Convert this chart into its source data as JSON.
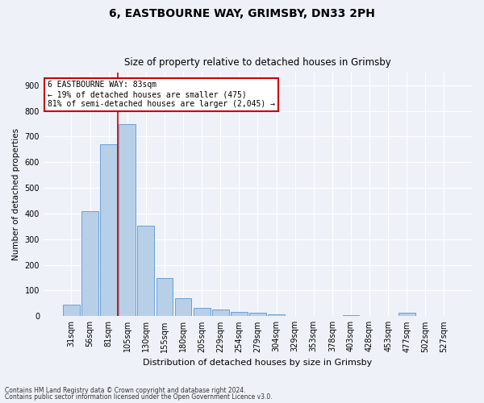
{
  "title1": "6, EASTBOURNE WAY, GRIMSBY, DN33 2PH",
  "title2": "Size of property relative to detached houses in Grimsby",
  "xlabel": "Distribution of detached houses by size in Grimsby",
  "ylabel": "Number of detached properties",
  "categories": [
    "31sqm",
    "56sqm",
    "81sqm",
    "105sqm",
    "130sqm",
    "155sqm",
    "180sqm",
    "205sqm",
    "229sqm",
    "254sqm",
    "279sqm",
    "304sqm",
    "329sqm",
    "353sqm",
    "378sqm",
    "403sqm",
    "428sqm",
    "453sqm",
    "477sqm",
    "502sqm",
    "527sqm"
  ],
  "values": [
    45,
    410,
    670,
    748,
    353,
    148,
    70,
    33,
    25,
    18,
    15,
    8,
    2,
    0,
    0,
    5,
    0,
    0,
    12,
    0,
    0
  ],
  "bar_color": "#b8cfe8",
  "bar_edge_color": "#6a9fd8",
  "vline_x": 2.5,
  "vline_color": "#cc0000",
  "annotation_text": "6 EASTBOURNE WAY: 83sqm\n← 19% of detached houses are smaller (475)\n81% of semi-detached houses are larger (2,045) →",
  "annotation_box_color": "#ffffff",
  "annotation_box_edge": "#cc0000",
  "ylim": [
    0,
    950
  ],
  "yticks": [
    0,
    100,
    200,
    300,
    400,
    500,
    600,
    700,
    800,
    900
  ],
  "footer1": "Contains HM Land Registry data © Crown copyright and database right 2024.",
  "footer2": "Contains public sector information licensed under the Open Government Licence v3.0.",
  "bg_color": "#eef2f8",
  "plot_bg_color": "#eef2f8",
  "title_fontsize": 10,
  "subtitle_fontsize": 8.5,
  "xlabel_fontsize": 8,
  "ylabel_fontsize": 7.5,
  "tick_fontsize": 7,
  "annotation_fontsize": 7
}
